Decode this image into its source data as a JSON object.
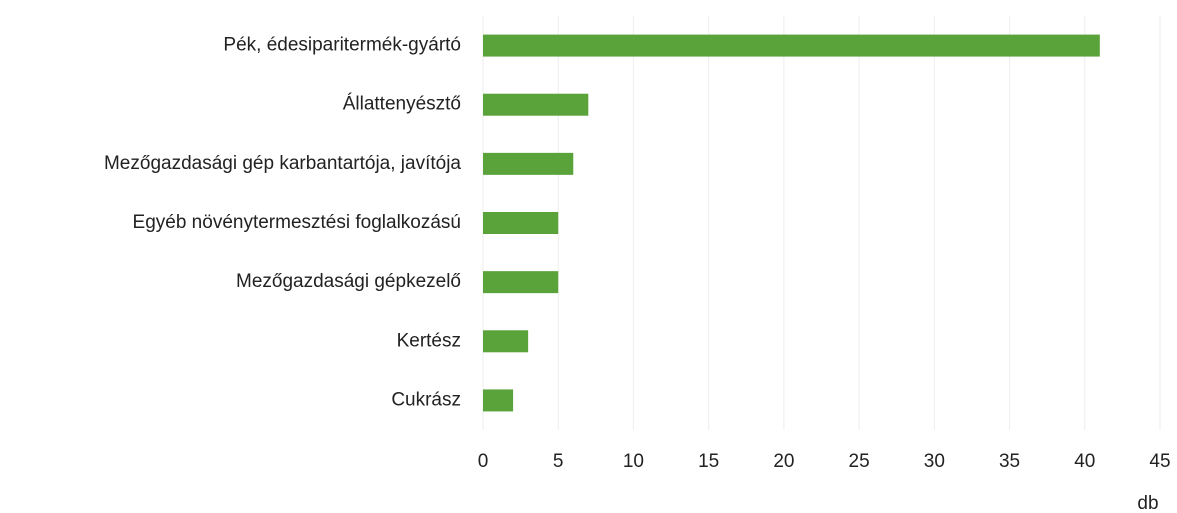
{
  "chart_data": {
    "type": "barh",
    "x_label": "db",
    "categories": [
      "Pék, édesiparitermék-gyártó",
      "Állattenyésztő",
      "Mezőgazdasági gép karbantartója, javítója",
      "Egyéb növénytermesztési foglalkozású",
      "Mezőgazdasági gépkezelő",
      "Kertész",
      "Cukrász"
    ],
    "values": [
      41,
      7,
      6,
      5,
      5,
      3,
      2
    ],
    "color": "#5aa33a",
    "xlim": [
      0,
      45
    ],
    "xticks": [
      0,
      5,
      10,
      15,
      20,
      25,
      30,
      35,
      40,
      45
    ],
    "grid": true
  }
}
